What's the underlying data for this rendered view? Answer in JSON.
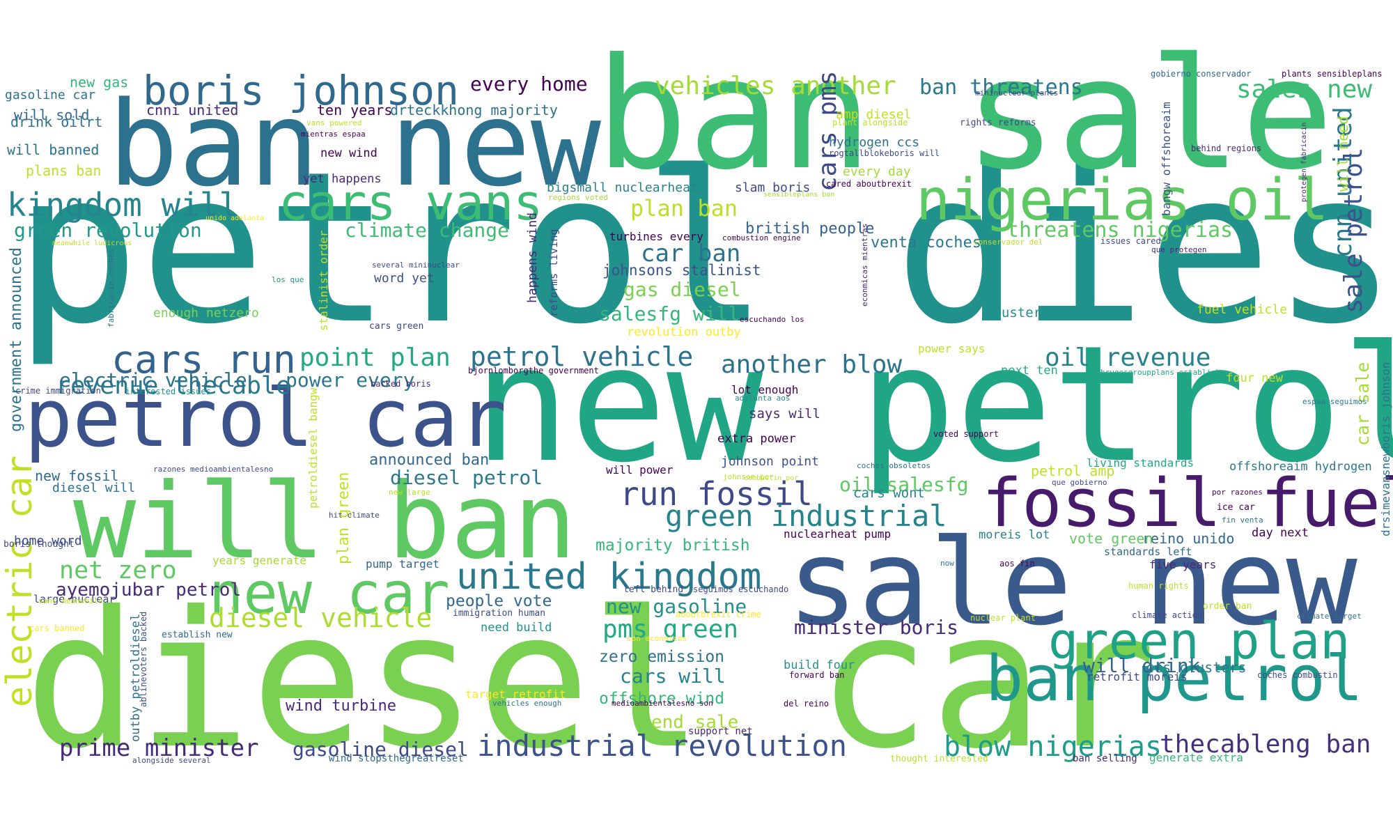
{
  "words": [
    {
      "text": "petrol diesel",
      "color": "#21918c"
    },
    {
      "text": "diesel car",
      "color": "#7ad151"
    },
    {
      "text": "new petrol",
      "color": "#21a685"
    },
    {
      "text": "ban sale",
      "color": "#3dbc74"
    },
    {
      "text": "ban new",
      "color": "#2c728e"
    },
    {
      "text": "sale new",
      "color": "#3b5a8c"
    },
    {
      "text": "will ban",
      "color": "#5ec962"
    },
    {
      "text": "petrol car",
      "color": "#3b528b"
    },
    {
      "text": "fossil fuel",
      "color": "#481a6c"
    },
    {
      "text": "ban petrol",
      "color": "#1f978b"
    },
    {
      "text": "nigerias oil",
      "color": "#5ec962"
    },
    {
      "text": "new car",
      "color": "#5ec962"
    },
    {
      "text": "green plan",
      "color": "#1fa187"
    },
    {
      "text": "boris johnson",
      "color": "#31688e"
    },
    {
      "text": "cars vans",
      "color": "#3dbc74"
    },
    {
      "text": "united kingdom",
      "color": "#2a788e"
    },
    {
      "text": "kingdom will",
      "color": "#25858e"
    },
    {
      "text": "cars run",
      "color": "#33638d"
    },
    {
      "text": "electric car",
      "color": "#c2df23"
    },
    {
      "text": "run fossil",
      "color": "#3e4989"
    },
    {
      "text": "green industrial",
      "color": "#25838e"
    },
    {
      "text": "industrial revolution",
      "color": "#3b528b"
    },
    {
      "text": "diesel vehicle",
      "color": "#addc30"
    },
    {
      "text": "blow nigerias",
      "color": "#1e9c89"
    },
    {
      "text": "thecableng ban",
      "color": "#46307e"
    },
    {
      "text": "petrol vehicle",
      "color": "#2c728e"
    },
    {
      "text": "revenue thecable",
      "color": "#2a788e"
    },
    {
      "text": "point plan",
      "color": "#22a884"
    },
    {
      "text": "another blow",
      "color": "#2c728e"
    },
    {
      "text": "oil revenue",
      "color": "#26828e"
    },
    {
      "text": "vehicles another",
      "color": "#a5db36"
    },
    {
      "text": "sales new",
      "color": "#3dbc74"
    },
    {
      "text": "cnn united",
      "color": "#2a788e"
    },
    {
      "text": "sale petrol",
      "color": "#3b528b"
    },
    {
      "text": "prime minister",
      "color": "#482878"
    },
    {
      "text": "pms green",
      "color": "#22a884"
    },
    {
      "text": "net zero",
      "color": "#5ec962"
    },
    {
      "text": "cars pms",
      "color": "#3e4989"
    },
    {
      "text": "plan ban",
      "color": "#bddf26"
    },
    {
      "text": "car ban",
      "color": "#2c728e"
    },
    {
      "text": "threatens nigerias",
      "color": "#5ec962"
    },
    {
      "text": "ban threatens",
      "color": "#2a788e"
    },
    {
      "text": "every home",
      "color": "#440154"
    },
    {
      "text": "electric vehicle",
      "color": "#2c728e"
    },
    {
      "text": "power every",
      "color": "#2a788e"
    },
    {
      "text": "gas diesel",
      "color": "#7ad151"
    },
    {
      "text": "salesfg will",
      "color": "#35b779"
    },
    {
      "text": "climate change",
      "color": "#3dbc74"
    },
    {
      "text": "green revolution",
      "color": "#1f9a8a"
    },
    {
      "text": "diesel petrol",
      "color": "#2a788e"
    },
    {
      "text": "new gasoline",
      "color": "#21918c"
    },
    {
      "text": "cars will",
      "color": "#25838e"
    },
    {
      "text": "minister boris",
      "color": "#482878"
    },
    {
      "text": "oil salesfg",
      "color": "#5ec962"
    },
    {
      "text": "will drink",
      "color": "#33638d"
    },
    {
      "text": "gasoline diesel",
      "color": "#3e4989"
    },
    {
      "text": "ayemojubar petrol",
      "color": "#482878"
    },
    {
      "text": "end sale",
      "color": "#a5db36"
    },
    {
      "text": "people vote",
      "color": "#31688e"
    },
    {
      "text": "zero emission",
      "color": "#2c728e"
    },
    {
      "text": "offshore wind",
      "color": "#35b779"
    },
    {
      "text": "majority british",
      "color": "#35b779"
    },
    {
      "text": "british people",
      "color": "#33638d"
    },
    {
      "text": "johnsons stalinist",
      "color": "#3b528b"
    },
    {
      "text": "venta coches",
      "color": "#2a788e"
    },
    {
      "text": "car sale",
      "color": "#a5db36"
    },
    {
      "text": "government announced",
      "color": "#2c728e"
    },
    {
      "text": "announced ban",
      "color": "#31688e"
    },
    {
      "text": "wind turbine",
      "color": "#482878"
    },
    {
      "text": "ccs clusters",
      "color": "#2a788e"
    },
    {
      "text": "reino unido",
      "color": "#31688e"
    },
    {
      "text": "vote green",
      "color": "#5ec962"
    },
    {
      "text": "plan green",
      "color": "#c2df23"
    },
    {
      "text": "will need",
      "color": "#a5db36"
    },
    {
      "text": "ten years",
      "color": "#440154"
    },
    {
      "text": "drteckkhong majority",
      "color": "#2c728e"
    },
    {
      "text": "cnni united",
      "color": "#482878"
    },
    {
      "text": "will sold",
      "color": "#31688e"
    },
    {
      "text": "will banned",
      "color": "#2c728e"
    },
    {
      "text": "gasoline car",
      "color": "#2c728e"
    },
    {
      "text": "drink oilrt",
      "color": "#2c728e"
    },
    {
      "text": "plans ban",
      "color": "#c2df23"
    },
    {
      "text": "new gas",
      "color": "#35b779"
    },
    {
      "text": "new wind",
      "color": "#440154"
    },
    {
      "text": "yet happens",
      "color": "#482878"
    },
    {
      "text": "amp diesel",
      "color": "#c2df23"
    },
    {
      "text": "hydrogen ccs",
      "color": "#2c728e"
    },
    {
      "text": "every day",
      "color": "#a5db36"
    },
    {
      "text": "slam boris",
      "color": "#3e4989"
    },
    {
      "text": "bigsmall nuclearheat",
      "color": "#26828e"
    },
    {
      "text": "turbines every",
      "color": "#440154"
    },
    {
      "text": "new fossil",
      "color": "#31688e"
    },
    {
      "text": "diesel will",
      "color": "#2c728e"
    },
    {
      "text": "home word",
      "color": "#3e4989"
    },
    {
      "text": "enough netzero",
      "color": "#7ad151"
    },
    {
      "text": "word yet",
      "color": "#3b528b"
    },
    {
      "text": "revolution outby",
      "color": "#fde725"
    },
    {
      "text": "says will",
      "color": "#482878"
    },
    {
      "text": "lot enough",
      "color": "#440154"
    },
    {
      "text": "extra power",
      "color": "#440154"
    },
    {
      "text": "johnson point",
      "color": "#3b528b"
    },
    {
      "text": "will power",
      "color": "#440154"
    },
    {
      "text": "petrol amp",
      "color": "#c2df23"
    },
    {
      "text": "cars wont",
      "color": "#26828e"
    },
    {
      "text": "offshoreaim hydrogen",
      "color": "#2a788e"
    },
    {
      "text": "nuclearheat pump",
      "color": "#440154"
    },
    {
      "text": "moreis lot",
      "color": "#26828e"
    },
    {
      "text": "day next",
      "color": "#440154"
    },
    {
      "text": "five years",
      "color": "#482878"
    },
    {
      "text": "pump target",
      "color": "#31688e"
    },
    {
      "text": "years generate",
      "color": "#a5db36"
    },
    {
      "text": "clusters bigsmall",
      "color": "#21918c"
    },
    {
      "text": "fuel vehicle",
      "color": "#c2df23"
    },
    {
      "text": "power says",
      "color": "#c2df23"
    },
    {
      "text": "next ten",
      "color": "#22a884"
    },
    {
      "text": "four new",
      "color": "#c2df23"
    },
    {
      "text": "build four",
      "color": "#21918c"
    },
    {
      "text": "need build",
      "color": "#21918c"
    },
    {
      "text": "retrofit moreis",
      "color": "#3e4989"
    },
    {
      "text": "standards left",
      "color": "#31688e"
    },
    {
      "text": "living standards",
      "color": "#22a884"
    },
    {
      "text": "happens wind",
      "color": "#482878"
    },
    {
      "text": "reforms living",
      "color": "#3e4989"
    },
    {
      "text": "stalinist order",
      "color": "#c2df23"
    },
    {
      "text": "petroldiesel bangw",
      "color": "#c2df23"
    },
    {
      "text": "bangw offshoreaim",
      "color": "#3b528b"
    },
    {
      "text": "drsimevansnewboris johnson",
      "color": "#2c728e"
    },
    {
      "text": "outby petroldiesel",
      "color": "#2c728e"
    },
    {
      "text": "ablinevoters backed",
      "color": "#3b528b"
    },
    {
      "text": "large nuclear",
      "color": "#3e4989"
    },
    {
      "text": "boris thought",
      "color": "#3e4989"
    },
    {
      "text": "target retrofit",
      "color": "#fde725"
    },
    {
      "text": "support net",
      "color": "#482878"
    },
    {
      "text": "wind stopsthegreatreset",
      "color": "#31688e"
    },
    {
      "text": "thought interested",
      "color": "#c2df23"
    },
    {
      "text": "ban selling",
      "color": "#482878"
    },
    {
      "text": "generate extra",
      "color": "#35b779"
    },
    {
      "text": "alongside several",
      "color": "#3e4989"
    },
    {
      "text": "left behind",
      "color": "#3e4989"
    },
    {
      "text": "seguimos escuchando",
      "color": "#3e4989"
    },
    {
      "text": "immigration human",
      "color": "#3e4989"
    },
    {
      "text": "aboutbrexit crime",
      "color": "#fde725"
    },
    {
      "text": "establish new",
      "color": "#31688e"
    },
    {
      "text": "cars banned",
      "color": "#fde725"
    },
    {
      "text": "vans meanwhile",
      "color": "#bddf26"
    },
    {
      "text": "vans powered",
      "color": "#c2df23"
    },
    {
      "text": "mientras espaa",
      "color": "#440154"
    },
    {
      "text": "plant alongside",
      "color": "#c2df23"
    },
    {
      "text": "rights reforms",
      "color": "#3e4989"
    },
    {
      "text": "mininuclear plants",
      "color": "#3e4989"
    },
    {
      "text": "gobierno conservador",
      "color": "#31688e"
    },
    {
      "text": "plants sensibleplans",
      "color": "#440154"
    },
    {
      "text": "behind regions",
      "color": "#482878"
    },
    {
      "text": "protegen fabricacin",
      "color": "#482878"
    },
    {
      "text": "rogtallblokeboris will",
      "color": "#3e4989"
    },
    {
      "text": "cared aboutbrexit",
      "color": "#440154"
    },
    {
      "text": "sensibleplans ban",
      "color": "#a5db36"
    },
    {
      "text": "regions voted",
      "color": "#a5db36"
    },
    {
      "text": "unido adelanta",
      "color": "#fde725"
    },
    {
      "text": "meanwhile ludicrous",
      "color": "#c2df23"
    },
    {
      "text": "los que",
      "color": "#21918c"
    },
    {
      "text": "several mininuclear",
      "color": "#3e4989"
    },
    {
      "text": "combustion engine",
      "color": "#440154"
    },
    {
      "text": "econmicas mientras",
      "color": "#482878"
    },
    {
      "text": "conservador del",
      "color": "#c2df23"
    },
    {
      "text": "issues cared",
      "color": "#3e4989"
    },
    {
      "text": "que protegen",
      "color": "#482878"
    },
    {
      "text": "fabricacin coches",
      "color": "#2c728e"
    },
    {
      "text": "cars green",
      "color": "#3e4989"
    },
    {
      "text": "escuchando los",
      "color": "#440154"
    },
    {
      "text": "crime immigration",
      "color": "#3e4989"
    },
    {
      "text": "interested issues",
      "color": "#21918c"
    },
    {
      "text": "backed boris",
      "color": "#482878"
    },
    {
      "text": "bjornlomborgthe government",
      "color": "#440154"
    },
    {
      "text": "brugesgroupplans establish",
      "color": "#22a884"
    },
    {
      "text": "adelanta aos",
      "color": "#21918c"
    },
    {
      "text": "espaa seguimos",
      "color": "#2a788e"
    },
    {
      "text": "voted support",
      "color": "#440154"
    },
    {
      "text": "razones medioambientalesno",
      "color": "#3e4989"
    },
    {
      "text": "hit climate",
      "color": "#3e4989"
    },
    {
      "text": "new large",
      "color": "#bddf26"
    },
    {
      "text": "johnson por",
      "color": "#bddf26"
    },
    {
      "text": "coches obsoletos",
      "color": "#2c728e"
    },
    {
      "text": "que gobierno",
      "color": "#3e4989"
    },
    {
      "text": "por razones",
      "color": "#440154"
    },
    {
      "text": "ice car",
      "color": "#440154"
    },
    {
      "text": "fin venta",
      "color": "#2c728e"
    },
    {
      "text": "now",
      "color": "#2a788e"
    },
    {
      "text": "aos fin",
      "color": "#440154"
    },
    {
      "text": "human rights",
      "color": "#c2df23"
    },
    {
      "text": "order ban",
      "color": "#bddf26"
    },
    {
      "text": "climate action",
      "color": "#3e4989"
    },
    {
      "text": "climate target",
      "color": "#2c728e"
    },
    {
      "text": "nuclear plant",
      "color": "#c2df23"
    },
    {
      "text": "son econmicas",
      "color": "#fde725"
    },
    {
      "text": "forward ban",
      "color": "#440154"
    },
    {
      "text": "coches combustin",
      "color": "#3e4989"
    },
    {
      "text": "vehicles enough",
      "color": "#2c728e"
    },
    {
      "text": "medioambientalesno son",
      "color": "#440154"
    },
    {
      "text": "del reino",
      "color": "#440154"
    },
    {
      "text": "combustin por",
      "color": "#c2df23"
    }
  ]
}
